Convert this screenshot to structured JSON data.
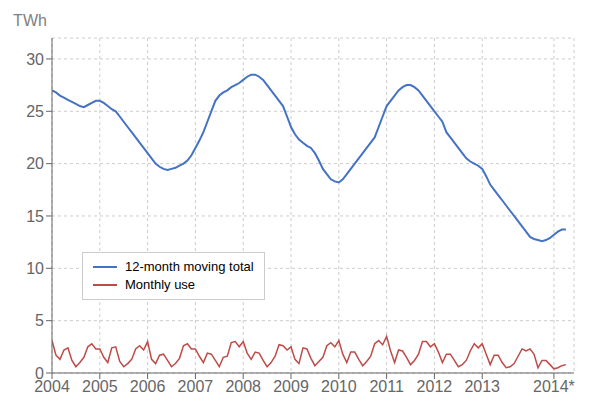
{
  "chart_data": {
    "type": "line",
    "ylabel": "TWh",
    "x": [
      2004.0,
      2004.083,
      2004.167,
      2004.25,
      2004.333,
      2004.417,
      2004.5,
      2004.583,
      2004.667,
      2004.75,
      2004.833,
      2004.917,
      2005.0,
      2005.083,
      2005.167,
      2005.25,
      2005.333,
      2005.417,
      2005.5,
      2005.583,
      2005.667,
      2005.75,
      2005.833,
      2005.917,
      2006.0,
      2006.083,
      2006.167,
      2006.25,
      2006.333,
      2006.417,
      2006.5,
      2006.583,
      2006.667,
      2006.75,
      2006.833,
      2006.917,
      2007.0,
      2007.083,
      2007.167,
      2007.25,
      2007.333,
      2007.417,
      2007.5,
      2007.583,
      2007.667,
      2007.75,
      2007.833,
      2007.917,
      2008.0,
      2008.083,
      2008.167,
      2008.25,
      2008.333,
      2008.417,
      2008.5,
      2008.583,
      2008.667,
      2008.75,
      2008.833,
      2008.917,
      2009.0,
      2009.083,
      2009.167,
      2009.25,
      2009.333,
      2009.417,
      2009.5,
      2009.583,
      2009.667,
      2009.75,
      2009.833,
      2009.917,
      2010.0,
      2010.083,
      2010.167,
      2010.25,
      2010.333,
      2010.417,
      2010.5,
      2010.583,
      2010.667,
      2010.75,
      2010.833,
      2010.917,
      2011.0,
      2011.083,
      2011.167,
      2011.25,
      2011.333,
      2011.417,
      2011.5,
      2011.583,
      2011.667,
      2011.75,
      2011.833,
      2011.917,
      2012.0,
      2012.083,
      2012.167,
      2012.25,
      2012.333,
      2012.417,
      2012.5,
      2012.583,
      2012.667,
      2012.75,
      2012.833,
      2012.917,
      2013.0,
      2013.083,
      2013.167,
      2013.25,
      2013.333,
      2013.417,
      2013.5,
      2013.583,
      2013.667,
      2013.75,
      2013.833,
      2013.917,
      2014.0,
      2014.083,
      2014.167,
      2014.25,
      2014.333,
      2014.417,
      2014.5,
      2014.583,
      2014.667,
      2014.75
    ],
    "series": [
      {
        "name": "12-month moving total",
        "color": "#4472C4",
        "values": [
          27.0,
          26.8,
          26.5,
          26.3,
          26.1,
          25.9,
          25.7,
          25.5,
          25.4,
          25.6,
          25.8,
          26.0,
          26.0,
          25.8,
          25.5,
          25.2,
          25.0,
          24.5,
          24.0,
          23.5,
          23.0,
          22.5,
          22.0,
          21.5,
          21.0,
          20.5,
          20.0,
          19.7,
          19.5,
          19.4,
          19.5,
          19.6,
          19.8,
          20.0,
          20.3,
          20.8,
          21.5,
          22.2,
          23.0,
          24.0,
          25.0,
          26.0,
          26.5,
          26.8,
          27.0,
          27.3,
          27.5,
          27.7,
          28.0,
          28.3,
          28.5,
          28.5,
          28.3,
          28.0,
          27.5,
          27.0,
          26.5,
          26.0,
          25.5,
          24.5,
          23.5,
          22.8,
          22.3,
          22.0,
          21.7,
          21.5,
          21.0,
          20.3,
          19.5,
          19.0,
          18.5,
          18.3,
          18.2,
          18.5,
          19.0,
          19.5,
          20.0,
          20.5,
          21.0,
          21.5,
          22.0,
          22.5,
          23.5,
          24.5,
          25.5,
          26.0,
          26.5,
          27.0,
          27.3,
          27.5,
          27.5,
          27.3,
          27.0,
          26.5,
          26.0,
          25.5,
          25.0,
          24.5,
          24.0,
          23.0,
          22.5,
          22.0,
          21.5,
          21.0,
          20.5,
          20.2,
          20.0,
          19.8,
          19.5,
          18.8,
          18.0,
          17.5,
          17.0,
          16.5,
          16.0,
          15.5,
          15.0,
          14.5,
          14.0,
          13.5,
          13.0,
          12.8,
          12.7,
          12.6,
          12.7,
          12.9,
          13.2,
          13.5,
          13.7,
          13.7
        ]
      },
      {
        "name": "Monthly use",
        "color": "#BE4B48",
        "values": [
          3.1,
          1.7,
          1.3,
          2.2,
          2.4,
          1.2,
          0.6,
          1.0,
          1.5,
          2.5,
          2.8,
          2.3,
          2.3,
          1.5,
          1.0,
          2.4,
          2.5,
          1.1,
          0.6,
          0.9,
          1.3,
          2.3,
          2.6,
          2.2,
          3.0,
          1.3,
          0.9,
          1.7,
          1.8,
          1.2,
          0.6,
          0.9,
          1.4,
          2.6,
          2.8,
          2.3,
          2.3,
          1.6,
          1.0,
          1.9,
          1.8,
          1.2,
          0.6,
          1.5,
          1.6,
          2.9,
          3.0,
          2.5,
          3.0,
          1.9,
          1.3,
          2.0,
          1.9,
          1.2,
          0.6,
          1.0,
          1.6,
          2.7,
          2.6,
          2.2,
          2.5,
          1.3,
          0.9,
          2.4,
          2.3,
          1.4,
          0.7,
          1.1,
          1.5,
          2.6,
          2.9,
          2.5,
          3.1,
          1.8,
          1.0,
          2.0,
          2.0,
          1.3,
          0.7,
          1.1,
          1.6,
          2.8,
          3.1,
          2.7,
          3.5,
          2.1,
          1.0,
          2.2,
          2.1,
          1.5,
          0.8,
          1.2,
          1.8,
          3.0,
          3.0,
          2.5,
          2.8,
          2.0,
          1.0,
          1.8,
          1.8,
          1.2,
          0.6,
          0.8,
          1.2,
          2.1,
          2.8,
          2.4,
          2.8,
          1.8,
          0.8,
          1.7,
          1.7,
          1.0,
          0.5,
          0.6,
          0.9,
          1.6,
          2.3,
          2.1,
          2.3,
          1.8,
          0.5,
          1.2,
          1.2,
          0.8,
          0.4,
          0.5,
          0.7,
          0.8
        ]
      }
    ],
    "xlim": [
      2004.0,
      2014.92
    ],
    "xticks": [
      2004,
      2005,
      2006,
      2007,
      2008,
      2009,
      2010,
      2011,
      2012,
      2013,
      {
        "value": 2014.5,
        "label": "2014*"
      }
    ],
    "ylim": [
      0,
      32
    ],
    "yticks": [
      0,
      5,
      10,
      15,
      20,
      25,
      30
    ],
    "grid": true,
    "legend": "left"
  }
}
